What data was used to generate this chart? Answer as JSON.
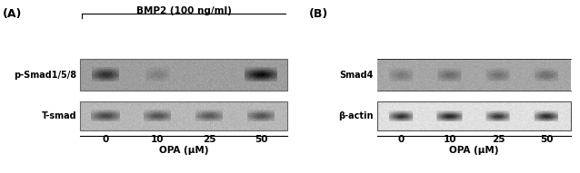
{
  "panel_A_label": "(A)",
  "panel_B_label": "(B)",
  "bmp2_label": "BMP2 (100 ng/ml)",
  "panel_A_row1_label": "p-Smad1/5/8",
  "panel_A_row2_label": "T-smad",
  "panel_B_row1_label": "Smad4",
  "panel_B_row2_label": "β-actin",
  "x_ticks": [
    "0",
    "10",
    "25",
    "50"
  ],
  "x_axis_label": "OPA (μM)",
  "bg_color": "#ffffff",
  "text_color": "#000000"
}
